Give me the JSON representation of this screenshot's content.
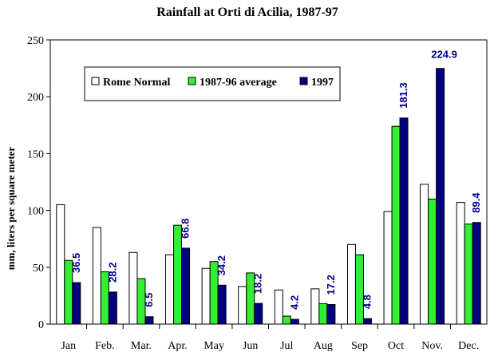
{
  "chart_data": {
    "type": "bar",
    "title": "Rainfall at Orti di Acilia, 1987-97",
    "xlabel": "",
    "ylabel": "mm, liters per square meter",
    "ylim": [
      0,
      250
    ],
    "yticks": [
      0,
      50,
      100,
      150,
      200,
      250
    ],
    "grid": false,
    "legend_position": "top-left",
    "categories": [
      "Jan",
      "Feb.",
      "Mar.",
      "Apr.",
      "May",
      "Jun",
      "Jul",
      "Aug",
      "Sep",
      "Oct",
      "Nov.",
      "Dec."
    ],
    "series": [
      {
        "name": "Rome Normal",
        "color": "#ffffff",
        "values": [
          105,
          85,
          63,
          61,
          49,
          33,
          30,
          31,
          70,
          99,
          123,
          107
        ]
      },
      {
        "name": "1987-96 average",
        "color": "#33ee33",
        "values": [
          56,
          46,
          40,
          87,
          55,
          45,
          7,
          18,
          61,
          174,
          110,
          88
        ]
      },
      {
        "name": "1997",
        "color": "#000080",
        "values": [
          36.5,
          28.2,
          6.5,
          66.8,
          34.2,
          18.2,
          4.2,
          17.2,
          4.8,
          181.3,
          224.9,
          89.4
        ]
      }
    ],
    "data_labels": [
      "36.5",
      "28.2",
      "6.5",
      "66.8",
      "34.2",
      "18.2",
      "4.2",
      "17.2",
      "4.8",
      "181.3",
      "224.9",
      "89.4"
    ],
    "data_label_color": "#00008b"
  }
}
